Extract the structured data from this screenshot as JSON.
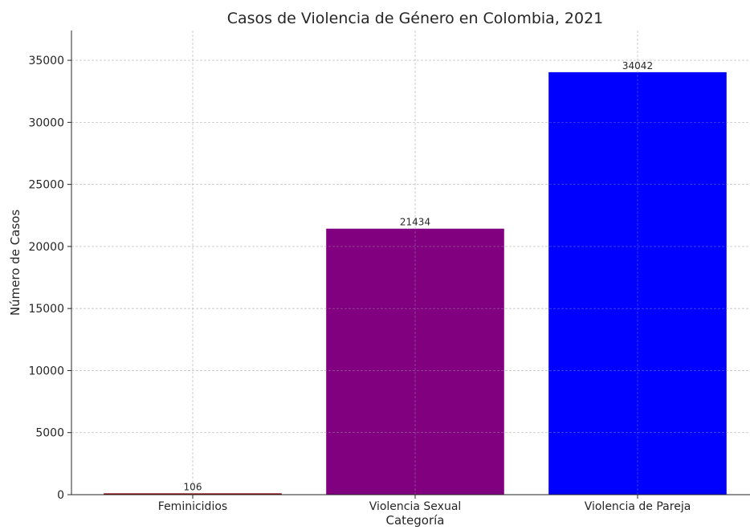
{
  "chart_data": {
    "type": "bar",
    "title": "Casos de Violencia de Género en Colombia, 2021",
    "xlabel": "Categoría",
    "ylabel": "Número de Casos",
    "categories": [
      "Feminicidios",
      "Violencia Sexual",
      "Violencia de Pareja"
    ],
    "values": [
      106,
      21434,
      34042
    ],
    "data_labels": [
      "106",
      "21434",
      "34042"
    ],
    "colors": [
      "#8b0000",
      "#800080",
      "#0000ff"
    ],
    "ylim": [
      0,
      37400
    ],
    "yticks": [
      0,
      5000,
      10000,
      15000,
      20000,
      25000,
      30000,
      35000
    ],
    "ytick_labels": [
      "0",
      "5000",
      "10000",
      "15000",
      "20000",
      "25000",
      "30000",
      "35000"
    ],
    "grid": true,
    "grid_style": "dashed"
  }
}
